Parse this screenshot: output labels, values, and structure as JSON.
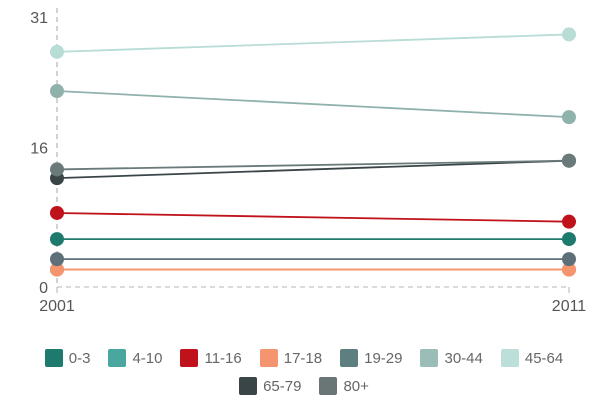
{
  "chart_data": {
    "type": "line",
    "title": "",
    "xlabel": "",
    "ylabel": "",
    "x": [
      "2001",
      "2011"
    ],
    "ylim": [
      0,
      31
    ],
    "y_ticks": [
      "0",
      "16",
      "31"
    ],
    "grid": false,
    "legend_position": "bottom",
    "series": [
      {
        "name": "0-3",
        "values": [
          5.5,
          5.5
        ],
        "color": "#1f7a6e"
      },
      {
        "name": "4-10",
        "values": [
          2.0,
          2.0
        ],
        "color": "#e8836c"
      },
      {
        "name": "11-16",
        "values": [
          8.5,
          7.5
        ],
        "color": "#c0121b"
      },
      {
        "name": "17-18",
        "values": [
          2.0,
          2.0
        ],
        "color": "#f4956f"
      },
      {
        "name": "19-29",
        "values": [
          3.2,
          3.2
        ],
        "color": "#5d6f78"
      },
      {
        "name": "30-44",
        "values": [
          22.5,
          19.5
        ],
        "color": "#8fb2ad"
      },
      {
        "name": "45-64",
        "values": [
          27.0,
          29.0
        ],
        "color": "#b8dcd6"
      },
      {
        "name": "65-79",
        "values": [
          12.5,
          14.5
        ],
        "color": "#3a4548"
      },
      {
        "name": "80+",
        "values": [
          13.5,
          14.5
        ],
        "color": "#6a7a7a"
      }
    ],
    "legend": [
      {
        "name": "0-3",
        "color": "#1f7a6e"
      },
      {
        "name": "4-10",
        "color": "#4aa7a0"
      },
      {
        "name": "11-16",
        "color": "#c0121b"
      },
      {
        "name": "17-18",
        "color": "#f4956f"
      },
      {
        "name": "19-29",
        "color": "#5d7f80"
      },
      {
        "name": "30-44",
        "color": "#9bbdb8"
      },
      {
        "name": "45-64",
        "color": "#bddfd9"
      },
      {
        "name": "65-79",
        "color": "#3a4548"
      },
      {
        "name": "80+",
        "color": "#6a7676"
      }
    ]
  }
}
